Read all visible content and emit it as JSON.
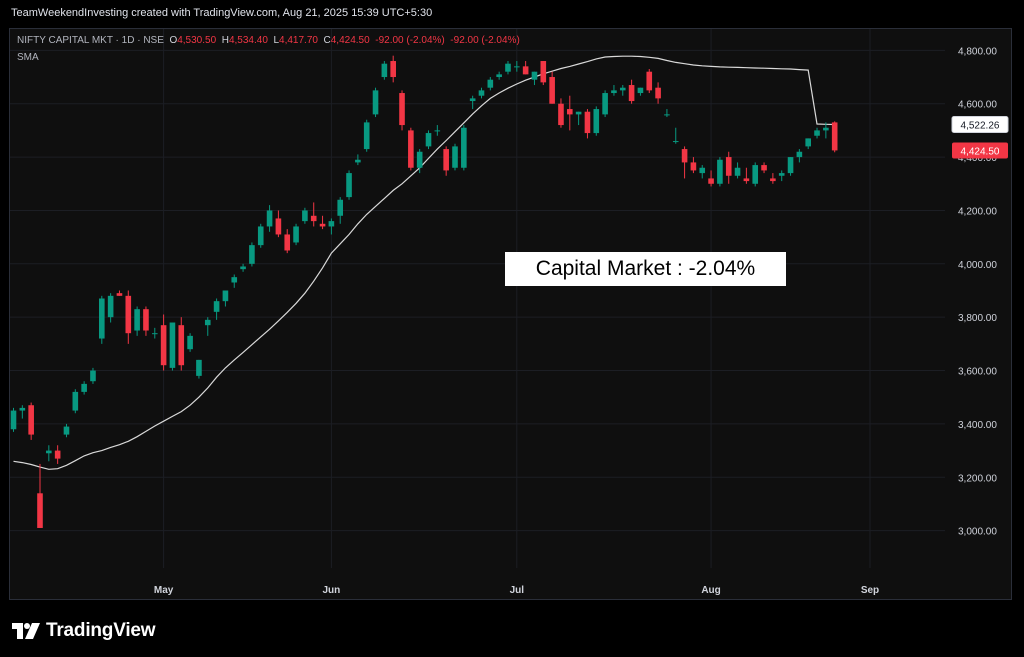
{
  "header": {
    "attribution": "TeamWeekendInvesting created with TradingView.com, Aug 21, 2025 15:39 UTC+5:30"
  },
  "legend": {
    "symbol": "NIFTY CAPITAL MKT · 1D · NSE",
    "o_label": "O",
    "o_value": "4,530.50",
    "h_label": "H",
    "h_value": "4,534.40",
    "l_label": "L",
    "l_value": "4,417.70",
    "c_label": "C",
    "c_value": "4,424.50",
    "change": "-92.00 (-2.04%)",
    "change2": "-92.00 (-2.04%)",
    "indicator": "SMA"
  },
  "annotation": "Capital Market : -2.04%",
  "logo_text": "TradingView",
  "colors": {
    "up": "#089981",
    "down": "#f23645",
    "sma": "#d9d9d9",
    "background": "#0f0f0f"
  },
  "chart_data": {
    "type": "candlestick",
    "symbol": "NIFTY CAPITAL MKT",
    "interval": "1D",
    "ylim": [
      2860,
      4880
    ],
    "y_ticks": [
      "3,000.00",
      "3,200.00",
      "3,400.00",
      "3,600.00",
      "3,800.00",
      "4,000.00",
      "4,200.00",
      "4,400.00",
      "4,600.00",
      "4,800.00"
    ],
    "y_tick_values": [
      3000,
      3200,
      3400,
      3600,
      3800,
      4000,
      4200,
      4400,
      4600,
      4800
    ],
    "x_ticks": [
      {
        "label": "May",
        "index": 17
      },
      {
        "label": "Jun",
        "index": 36
      },
      {
        "label": "Jul",
        "index": 57
      },
      {
        "label": "Aug",
        "index": 79
      },
      {
        "label": "Sep",
        "index": 97
      }
    ],
    "price_labels": [
      {
        "value": 4522.26,
        "text": "4,522.26",
        "kind": "sma"
      },
      {
        "value": 4424.5,
        "text": "4,424.50",
        "kind": "last"
      }
    ],
    "candles": [
      [
        3380,
        3460,
        3370,
        3450
      ],
      [
        3450,
        3470,
        3420,
        3460
      ],
      [
        3470,
        3480,
        3340,
        3360
      ],
      [
        3140,
        3250,
        3010,
        3010
      ],
      [
        3290,
        3320,
        3260,
        3300
      ],
      [
        3300,
        3320,
        3250,
        3270
      ],
      [
        3360,
        3400,
        3350,
        3390
      ],
      [
        3450,
        3530,
        3440,
        3520
      ],
      [
        3520,
        3560,
        3510,
        3550
      ],
      [
        3560,
        3610,
        3550,
        3600
      ],
      [
        3720,
        3880,
        3700,
        3870
      ],
      [
        3800,
        3890,
        3780,
        3880
      ],
      [
        3890,
        3900,
        3880,
        3880
      ],
      [
        3880,
        3900,
        3700,
        3740
      ],
      [
        3750,
        3840,
        3730,
        3830
      ],
      [
        3830,
        3840,
        3730,
        3750
      ],
      [
        3740,
        3760,
        3720,
        3740
      ],
      [
        3770,
        3810,
        3600,
        3620
      ],
      [
        3610,
        3780,
        3600,
        3780
      ],
      [
        3770,
        3800,
        3600,
        3620
      ],
      [
        3680,
        3740,
        3670,
        3730
      ],
      [
        3580,
        3640,
        3570,
        3640
      ],
      [
        3770,
        3800,
        3730,
        3790
      ],
      [
        3820,
        3870,
        3790,
        3860
      ],
      [
        3860,
        3900,
        3840,
        3900
      ],
      [
        3930,
        3960,
        3910,
        3950
      ],
      [
        3980,
        4000,
        3970,
        3990
      ],
      [
        4000,
        4080,
        3990,
        4070
      ],
      [
        4070,
        4150,
        4060,
        4140
      ],
      [
        4140,
        4220,
        4120,
        4200
      ],
      [
        4170,
        4200,
        4100,
        4110
      ],
      [
        4110,
        4130,
        4040,
        4050
      ],
      [
        4080,
        4150,
        4070,
        4140
      ],
      [
        4160,
        4210,
        4150,
        4200
      ],
      [
        4180,
        4230,
        4140,
        4160
      ],
      [
        4150,
        4180,
        4130,
        4140
      ],
      [
        4140,
        4170,
        4110,
        4160
      ],
      [
        4180,
        4250,
        4150,
        4240
      ],
      [
        4250,
        4350,
        4240,
        4340
      ],
      [
        4380,
        4410,
        4370,
        4390
      ],
      [
        4430,
        4540,
        4420,
        4530
      ],
      [
        4560,
        4660,
        4550,
        4650
      ],
      [
        4700,
        4760,
        4690,
        4750
      ],
      [
        4760,
        4780,
        4680,
        4700
      ],
      [
        4640,
        4650,
        4500,
        4520
      ],
      [
        4500,
        4510,
        4350,
        4360
      ],
      [
        4360,
        4430,
        4340,
        4420
      ],
      [
        4440,
        4500,
        4430,
        4490
      ],
      [
        4500,
        4520,
        4480,
        4500
      ],
      [
        4430,
        4440,
        4330,
        4350
      ],
      [
        4360,
        4450,
        4350,
        4440
      ],
      [
        4360,
        4520,
        4350,
        4510
      ],
      [
        4610,
        4630,
        4580,
        4620
      ],
      [
        4630,
        4660,
        4620,
        4650
      ],
      [
        4660,
        4700,
        4650,
        4690
      ],
      [
        4700,
        4720,
        4690,
        4710
      ],
      [
        4720,
        4760,
        4710,
        4750
      ],
      [
        4740,
        4760,
        4720,
        4740
      ],
      [
        4740,
        4760,
        4710,
        4710
      ],
      [
        4690,
        4720,
        4670,
        4720
      ],
      [
        4760,
        4760,
        4670,
        4680
      ],
      [
        4700,
        4720,
        4600,
        4600
      ],
      [
        4600,
        4620,
        4510,
        4520
      ],
      [
        4580,
        4630,
        4500,
        4560
      ],
      [
        4560,
        4570,
        4520,
        4570
      ],
      [
        4570,
        4580,
        4470,
        4490
      ],
      [
        4490,
        4590,
        4480,
        4580
      ],
      [
        4560,
        4650,
        4550,
        4640
      ],
      [
        4640,
        4670,
        4630,
        4650
      ],
      [
        4650,
        4670,
        4630,
        4660
      ],
      [
        4670,
        4690,
        4600,
        4610
      ],
      [
        4640,
        4660,
        4630,
        4660
      ],
      [
        4720,
        4730,
        4640,
        4650
      ],
      [
        4660,
        4680,
        4600,
        4620
      ],
      [
        4560,
        4580,
        4550,
        4560
      ],
      [
        4460,
        4510,
        4450,
        4460
      ],
      [
        4430,
        4440,
        4320,
        4380
      ],
      [
        4380,
        4400,
        4340,
        4350
      ],
      [
        4340,
        4370,
        4320,
        4360
      ],
      [
        4320,
        4350,
        4290,
        4300
      ],
      [
        4300,
        4400,
        4290,
        4390
      ],
      [
        4400,
        4420,
        4300,
        4330
      ],
      [
        4330,
        4380,
        4320,
        4360
      ],
      [
        4320,
        4360,
        4300,
        4310
      ],
      [
        4300,
        4380,
        4290,
        4370
      ],
      [
        4370,
        4380,
        4340,
        4350
      ],
      [
        4320,
        4340,
        4300,
        4310
      ],
      [
        4330,
        4350,
        4310,
        4340
      ],
      [
        4340,
        4400,
        4330,
        4400
      ],
      [
        4400,
        4430,
        4380,
        4420
      ],
      [
        4440,
        4470,
        4430,
        4470
      ],
      [
        4480,
        4510,
        4470,
        4500
      ],
      [
        4500,
        4530,
        4470,
        4510
      ],
      [
        4530,
        4534,
        4418,
        4425
      ]
    ],
    "sma": [
      3260,
      3255,
      3248,
      3238,
      3230,
      3232,
      3245,
      3262,
      3280,
      3292,
      3300,
      3312,
      3322,
      3335,
      3352,
      3372,
      3392,
      3410,
      3428,
      3446,
      3470,
      3500,
      3535,
      3575,
      3610,
      3640,
      3668,
      3697,
      3726,
      3755,
      3786,
      3818,
      3852,
      3890,
      3935,
      3985,
      4040,
      4075,
      4110,
      4150,
      4185,
      4215,
      4245,
      4275,
      4300,
      4330,
      4360,
      4395,
      4430,
      4462,
      4495,
      4528,
      4562,
      4592,
      4620,
      4640,
      4658,
      4674,
      4688,
      4700,
      4712,
      4722,
      4732,
      4740,
      4749,
      4758,
      4768,
      4775,
      4777,
      4778,
      4778,
      4777,
      4774,
      4770,
      4762,
      4755,
      4750,
      4745,
      4742,
      4740,
      4738,
      4737,
      4736,
      4735,
      4734,
      4733,
      4732,
      4731,
      4730,
      4728,
      4726,
      4524,
      4523,
      4522
    ]
  }
}
